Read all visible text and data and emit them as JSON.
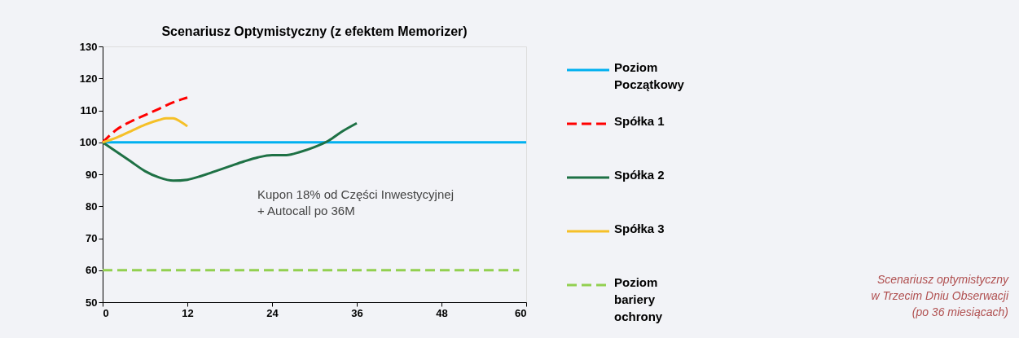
{
  "chart_data": {
    "type": "line",
    "title": "Scenariusz Optymistyczny (z efektem Memorizer)",
    "xlim": [
      0,
      60
    ],
    "xticks": [
      0,
      12,
      24,
      36,
      48,
      60
    ],
    "ylim": [
      50,
      130
    ],
    "yticks": [
      50,
      60,
      70,
      80,
      90,
      100,
      110,
      120,
      130
    ],
    "grid": false,
    "legend": "right",
    "annotations": [
      "Kupon 18% od Części Inwestycyjnej\n+ Autocall po 36M",
      "Scenariusz optymistyczny\nw Trzecim Dniu Obserwacji\n(po 36 miesiącach)"
    ],
    "series": [
      {
        "name": "Poziom Początkowy",
        "color": "#00b0f0",
        "line_style": "solid",
        "x": [
          0,
          60
        ],
        "values": [
          100,
          100
        ]
      },
      {
        "name": "Spółka 1",
        "color": "#ff0000",
        "line_style": "dashed",
        "x": [
          0,
          2,
          4,
          6,
          8,
          10,
          12
        ],
        "values": [
          100,
          104,
          106.5,
          108.5,
          110.5,
          112.5,
          114
        ]
      },
      {
        "name": "Spółka 2",
        "color": "#1e7145",
        "line_style": "solid",
        "x": [
          0,
          2,
          4,
          6,
          8,
          10,
          12,
          14,
          16,
          18,
          20,
          22,
          24,
          26,
          28,
          30,
          32,
          34,
          36
        ],
        "values": [
          100,
          97,
          94,
          91,
          89,
          88,
          88.3,
          89.5,
          91,
          92.5,
          94,
          95.3,
          96,
          96,
          97,
          98.5,
          100.5,
          103.5,
          106
        ]
      },
      {
        "name": "Spółka 3",
        "color": "#f5c028",
        "line_style": "solid",
        "x": [
          0,
          2,
          4,
          6,
          8,
          9,
          10,
          11,
          12
        ],
        "values": [
          100,
          101.5,
          103.5,
          105.5,
          107,
          107.5,
          107.5,
          106.5,
          105
        ]
      },
      {
        "name": "Poziom bariery ochrony",
        "color": "#92d050",
        "line_style": "dashed",
        "x": [
          0,
          59
        ],
        "values": [
          60,
          60
        ]
      }
    ]
  }
}
